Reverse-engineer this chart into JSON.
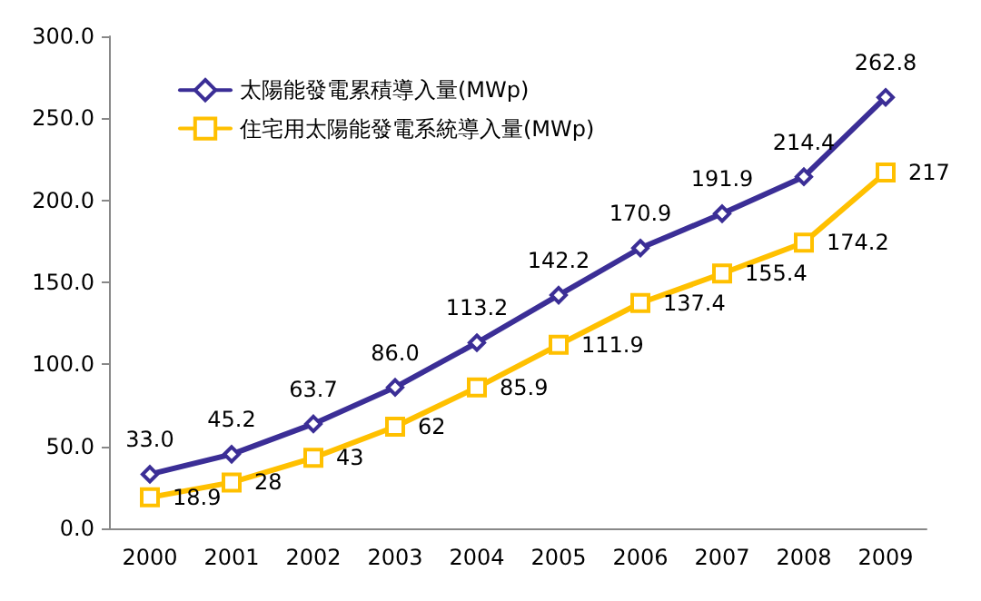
{
  "chart_data": {
    "type": "line",
    "categories": [
      "2000",
      "2001",
      "2002",
      "2003",
      "2004",
      "2005",
      "2006",
      "2007",
      "2008",
      "2009"
    ],
    "ylim": [
      0,
      300
    ],
    "yticks": [
      {
        "value": 0,
        "label": "0.0"
      },
      {
        "value": 50,
        "label": "50.0"
      },
      {
        "value": 100,
        "label": "100.0"
      },
      {
        "value": 150,
        "label": "150.0"
      },
      {
        "value": 200,
        "label": "200.0"
      },
      {
        "value": 250,
        "label": "250.0"
      },
      {
        "value": 300,
        "label": "300.0"
      }
    ],
    "grid": false,
    "legend": "top left",
    "line_style": "solid",
    "series": [
      {
        "name": "太陽能發電累積導入量(MWp)",
        "color": "#3b2e96",
        "marker": "diamond",
        "values": [
          33.0,
          45.2,
          63.7,
          86.0,
          113.2,
          142.2,
          170.9,
          191.9,
          214.4,
          262.8
        ],
        "value_labels": [
          "33.0",
          "45.2",
          "63.7",
          "86.0",
          "113.2",
          "142.2",
          "170.9",
          "191.9",
          "214.4",
          "262.8"
        ]
      },
      {
        "name": "住宅用太陽能發電系統導入量(MWp)",
        "color": "#ffc000",
        "marker": "square",
        "values": [
          18.9,
          28,
          43,
          62,
          85.9,
          111.9,
          137.4,
          155.4,
          174.2,
          217
        ],
        "value_labels": [
          "18.9",
          "28",
          "43",
          "62",
          "85.9",
          "111.9",
          "137.4",
          "155.4",
          "174.2",
          "217"
        ]
      }
    ]
  }
}
